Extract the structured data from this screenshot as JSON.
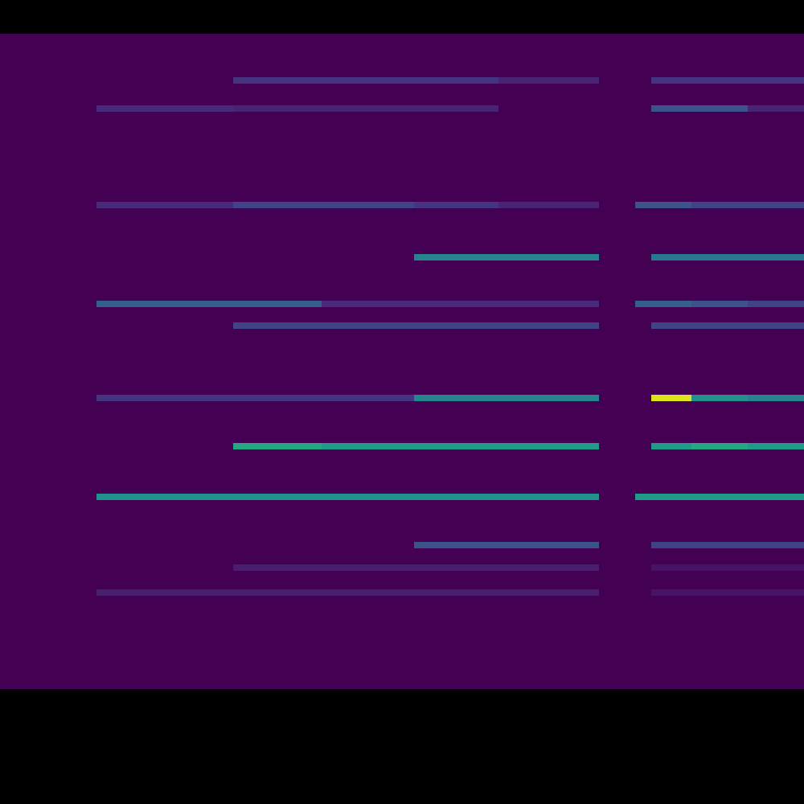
{
  "chart_data": {
    "type": "heatmap",
    "x_edges": [
      0,
      120,
      290,
      400,
      515,
      620,
      745,
      790,
      810,
      860,
      930,
      1000
    ],
    "y_edges": [
      0,
      116,
      124,
      147,
      155,
      175,
      183,
      235,
      243,
      298,
      306,
      358,
      366,
      448,
      456,
      475,
      483,
      533,
      541,
      598,
      606,
      718,
      726,
      753,
      761,
      815
    ],
    "cells": [
      [
        0,
        0,
        0,
        0,
        0,
        0,
        0,
        0,
        0,
        0,
        0
      ],
      [
        0,
        0.08,
        0.08,
        0.08,
        0.08,
        0.08,
        0,
        0,
        0.05,
        0.05,
        0.05
      ],
      [
        0,
        0,
        0,
        0,
        0,
        0,
        0,
        0,
        0,
        0,
        0
      ],
      [
        0,
        0,
        0.08,
        0.08,
        0.08,
        0.08,
        0,
        0,
        0.05,
        0.05,
        0.05
      ],
      [
        0,
        0,
        0,
        0,
        0,
        0,
        0,
        0,
        0,
        0,
        0
      ],
      [
        0,
        0,
        0,
        0,
        0.25,
        0.25,
        0,
        0,
        0.2,
        0.2,
        0.2
      ],
      [
        0,
        0,
        0,
        0,
        0,
        0,
        0,
        0,
        0,
        0,
        0
      ],
      [
        0,
        0.5,
        0.5,
        0.5,
        0.5,
        0.5,
        0,
        0.55,
        0.55,
        0.55,
        0.55
      ],
      [
        0,
        0,
        0,
        0,
        0,
        0,
        0,
        0,
        0,
        0,
        0
      ],
      [
        0,
        0,
        0.6,
        0.55,
        0.55,
        0.55,
        0,
        0,
        0.55,
        0.6,
        0.55
      ],
      [
        0,
        0,
        0,
        0,
        0,
        0,
        0,
        0,
        0,
        0,
        0
      ],
      [
        0,
        0.15,
        0.15,
        0.15,
        0.45,
        0.45,
        0,
        0,
        0.95,
        0.5,
        0.45
      ],
      [
        0,
        0,
        0,
        0,
        0,
        0,
        0,
        0,
        0,
        0,
        0
      ],
      [
        0,
        0,
        0.2,
        0.2,
        0.2,
        0.2,
        0,
        0,
        0.2,
        0.2,
        0.2
      ],
      [
        0,
        0,
        0,
        0,
        0,
        0,
        0,
        0,
        0,
        0,
        0
      ],
      [
        0,
        0.3,
        0.3,
        0.12,
        0.12,
        0.12,
        0,
        0.3,
        0.3,
        0.25,
        0.2
      ],
      [
        0,
        0,
        0,
        0,
        0,
        0,
        0,
        0,
        0,
        0,
        0
      ],
      [
        0,
        0,
        0,
        0,
        0.45,
        0.45,
        0,
        0,
        0.4,
        0.4,
        0.4
      ],
      [
        0,
        0,
        0,
        0,
        0,
        0,
        0,
        0,
        0,
        0,
        0
      ],
      [
        0,
        0.12,
        0.2,
        0.2,
        0.15,
        0.1,
        0,
        0.25,
        0.25,
        0.2,
        0.2
      ],
      [
        0,
        0,
        0,
        0,
        0,
        0,
        0,
        0,
        0,
        0,
        0
      ],
      [
        0,
        0.12,
        0.1,
        0.1,
        0.1,
        0,
        0,
        0,
        0.25,
        0.25,
        0.1
      ],
      [
        0,
        0,
        0,
        0,
        0,
        0,
        0,
        0,
        0,
        0,
        0
      ],
      [
        0,
        0,
        0.15,
        0.15,
        0.15,
        0.1,
        0,
        0,
        0.15,
        0.15,
        0.15
      ],
      [
        0,
        0,
        0,
        0,
        0,
        0,
        0,
        0,
        0,
        0,
        0
      ]
    ],
    "zlim": [
      0,
      1
    ],
    "xlim": [
      0,
      1000
    ],
    "ylim": [
      0,
      815
    ],
    "tick_labels": false,
    "grid": false
  }
}
